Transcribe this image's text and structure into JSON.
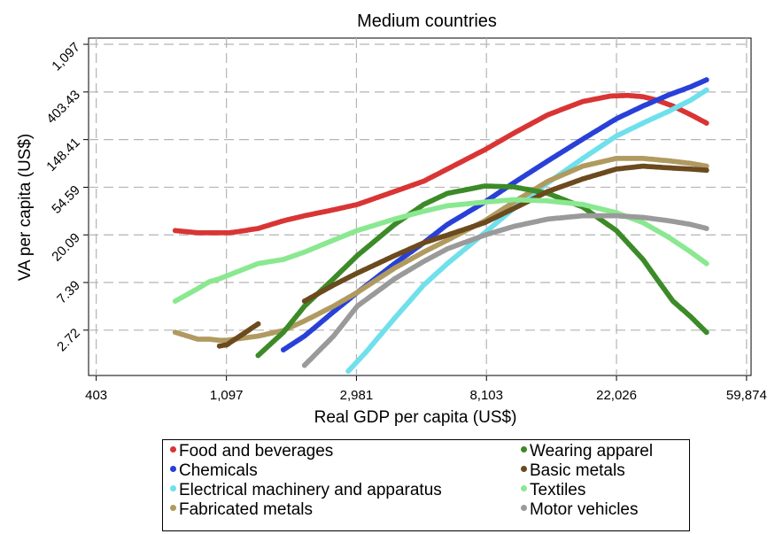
{
  "chart_data": {
    "type": "scatter",
    "title": "Medium countries",
    "xlabel": "Real GDP per capita (US$)",
    "ylabel": "VA per capita (US$)",
    "x_scale": "log",
    "y_scale": "log",
    "xlim": [
      380,
      62000
    ],
    "ylim": [
      1.05,
      1250
    ],
    "x_ticks": [
      403,
      1097,
      2981,
      8103,
      22026,
      59874
    ],
    "x_tick_labels": [
      "403",
      "1,097",
      "2,981",
      "8,103",
      "22,026",
      "59,874"
    ],
    "y_ticks": [
      2.72,
      7.39,
      20.09,
      54.59,
      148.41,
      403.43,
      1097
    ],
    "y_tick_labels": [
      "2.72",
      "7.39",
      "20.09",
      "54.59",
      "148.41",
      "403.43",
      "1,097"
    ],
    "grid": true,
    "legend_position": "bottom",
    "series": [
      {
        "name": "Food and beverages",
        "color": "#d93535",
        "x": [
          740,
          880,
          960,
          1040,
          1120,
          1200,
          1400,
          1700,
          2000,
          2500,
          3000,
          4000,
          5000,
          6000,
          8000,
          10000,
          13000,
          17000,
          21000,
          24000,
          27000,
          30000,
          34000,
          39000,
          44000
        ],
        "y": [
          22,
          21,
          21,
          21,
          21,
          21.5,
          23,
          27,
          30,
          34,
          38,
          50,
          62,
          80,
          120,
          170,
          250,
          330,
          370,
          375,
          365,
          340,
          300,
          250,
          210
        ]
      },
      {
        "name": "Chemicals",
        "color": "#2840d8",
        "x": [
          1700,
          2000,
          2500,
          3000,
          4000,
          5000,
          6000,
          8000,
          10000,
          13000,
          17000,
          22000,
          27000,
          33000,
          39000,
          44000
        ],
        "y": [
          1.8,
          2.4,
          4,
          6,
          11,
          17,
          25,
          40,
          60,
          95,
          150,
          230,
          300,
          380,
          450,
          520
        ]
      },
      {
        "name": "Electrical machinery and apparatus",
        "color": "#6fe0ec",
        "x": [
          2800,
          3200,
          4000,
          5000,
          6000,
          8000,
          10000,
          13000,
          17000,
          22000,
          27000,
          33000,
          39000,
          44000
        ],
        "y": [
          1.15,
          1.7,
          3.5,
          7,
          11,
          21,
          35,
          60,
          100,
          160,
          210,
          270,
          340,
          420
        ]
      },
      {
        "name": "Fabricated metals",
        "color": "#b09a60",
        "x": [
          740,
          880,
          960,
          1040,
          1100,
          1400,
          1700,
          2000,
          2500,
          3000,
          4000,
          5000,
          6000,
          8000,
          10000,
          13000,
          17000,
          22000,
          27000,
          33000,
          39000,
          44000
        ],
        "y": [
          2.6,
          2.25,
          2.25,
          2.2,
          2.2,
          2.4,
          2.7,
          3.3,
          4.5,
          6,
          10,
          14,
          18,
          27,
          40,
          62,
          85,
          100,
          100,
          95,
          90,
          85
        ]
      },
      {
        "name": "Wearing apparel",
        "color": "#3c8a28",
        "x": [
          1400,
          1700,
          2000,
          2500,
          3000,
          4000,
          5000,
          6000,
          8000,
          10000,
          13000,
          17000,
          22000,
          27000,
          30000,
          34000,
          39000,
          44000
        ],
        "y": [
          1.6,
          2.6,
          4.5,
          8,
          13,
          25,
          38,
          48,
          56,
          55,
          48,
          36,
          22,
          12,
          8,
          5,
          3.6,
          2.6
        ]
      },
      {
        "name": "Basic metals",
        "color": "#6b4a1e",
        "x": [
          1040,
          1100,
          1400,
          2000,
          2500,
          3000,
          4000,
          5000,
          6000,
          8000,
          10000,
          13000,
          17000,
          22000,
          27000,
          33000,
          39000,
          44000
        ],
        "y": [
          1.95,
          2,
          3.1,
          5,
          7,
          9,
          13,
          17,
          20,
          26,
          35,
          50,
          65,
          80,
          85,
          82,
          80,
          78
        ]
      },
      {
        "name": "Textiles",
        "color": "#8ae890",
        "x": [
          740,
          880,
          960,
          1040,
          1100,
          1400,
          1700,
          2000,
          2500,
          3000,
          4000,
          5000,
          6000,
          8000,
          10000,
          13000,
          17000,
          22000,
          27000,
          33000,
          39000,
          44000
        ],
        "y": [
          5,
          6.5,
          7.5,
          8,
          8.5,
          11,
          12,
          14,
          18,
          22,
          28,
          33,
          37,
          40,
          42,
          41,
          38,
          32,
          26,
          19,
          14,
          11
        ]
      },
      {
        "name": "Motor vehicles",
        "color": "#9a9a9a",
        "x": [
          2000,
          2500,
          3000,
          4000,
          5000,
          6000,
          8000,
          10000,
          13000,
          17000,
          22000,
          27000,
          33000,
          39000,
          44000
        ],
        "y": [
          1.3,
          2.4,
          4.5,
          8,
          11.5,
          15,
          20,
          24,
          28,
          30,
          30,
          29,
          27,
          25,
          23
        ]
      }
    ]
  },
  "legend": {
    "items": [
      "Food and beverages",
      "Chemicals",
      "Electrical machinery and apparatus",
      "Fabricated metals",
      "Wearing apparel",
      "Basic metals",
      "Textiles",
      "Motor vehicles"
    ]
  }
}
